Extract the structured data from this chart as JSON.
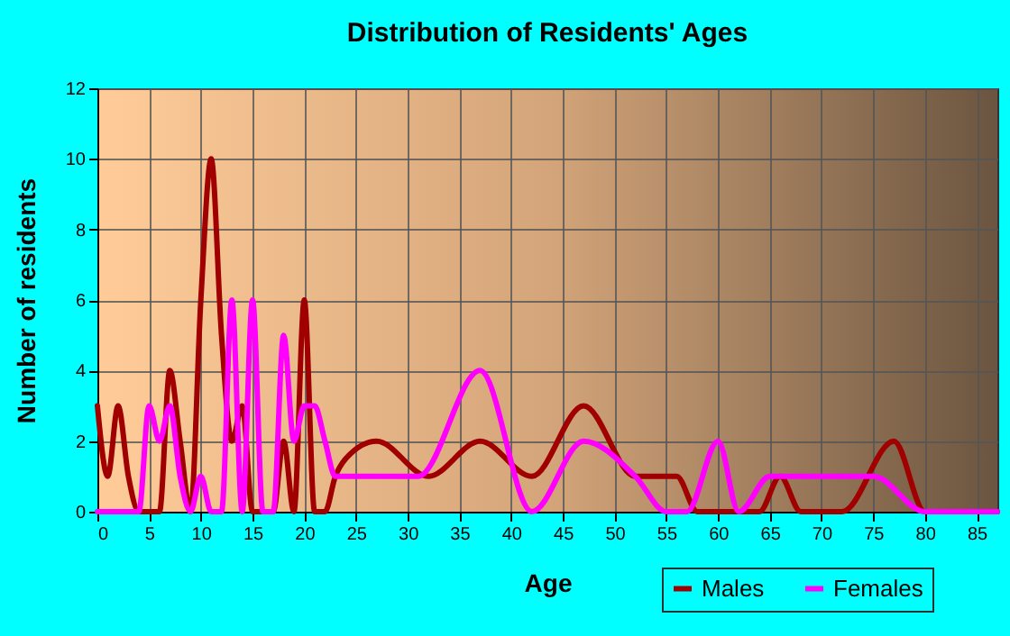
{
  "chart_data": {
    "type": "line",
    "title": "Distribution of Residents' Ages",
    "xlabel": "Age",
    "ylabel": "Number of residents",
    "xlim": [
      0,
      87
    ],
    "xticks": [
      0,
      5,
      10,
      15,
      20,
      25,
      30,
      35,
      40,
      45,
      50,
      55,
      60,
      65,
      70,
      75,
      80,
      85
    ],
    "ylim": [
      0,
      12
    ],
    "yticks": [
      0,
      2,
      4,
      6,
      8,
      10,
      12
    ],
    "grid": true,
    "legend": "bottom right",
    "marker": "none",
    "series": [
      {
        "name": "Males",
        "color": "#a00000",
        "x": [
          0,
          1,
          2,
          3,
          4,
          5,
          6,
          7,
          8,
          9,
          10,
          11,
          12,
          13,
          14,
          15,
          16,
          17,
          18,
          19,
          20,
          21,
          22,
          23,
          24,
          27,
          32,
          37,
          42,
          47,
          52,
          56,
          58,
          62,
          64,
          66,
          68,
          72,
          77,
          80,
          87
        ],
        "values": [
          3,
          1,
          3,
          1,
          0,
          0,
          0,
          4,
          2,
          0,
          6,
          10,
          5,
          2,
          3,
          0,
          0,
          0,
          2,
          0,
          6,
          0,
          0,
          1,
          1.5,
          2,
          1,
          2,
          1,
          3,
          1,
          1,
          0,
          0,
          0,
          1,
          0,
          0,
          2,
          0,
          0
        ]
      },
      {
        "name": "Females",
        "color": "#ff00ff",
        "x": [
          0,
          1,
          2,
          3,
          4,
          5,
          6,
          7,
          8,
          9,
          10,
          11,
          12,
          13,
          14,
          15,
          16,
          17,
          18,
          19,
          20,
          21,
          22,
          23,
          24,
          27,
          31,
          37,
          42,
          47,
          52,
          55,
          57,
          60,
          62,
          65,
          70,
          75,
          80,
          87
        ],
        "values": [
          0,
          0,
          0,
          0,
          0,
          3,
          2,
          3,
          1,
          0,
          1,
          0,
          0,
          6,
          0,
          6,
          0,
          0,
          5,
          2,
          3,
          3,
          2,
          1,
          1,
          1,
          1,
          4,
          0,
          2,
          1,
          0,
          0,
          2,
          0,
          1,
          1,
          1,
          0,
          0
        ]
      }
    ]
  }
}
